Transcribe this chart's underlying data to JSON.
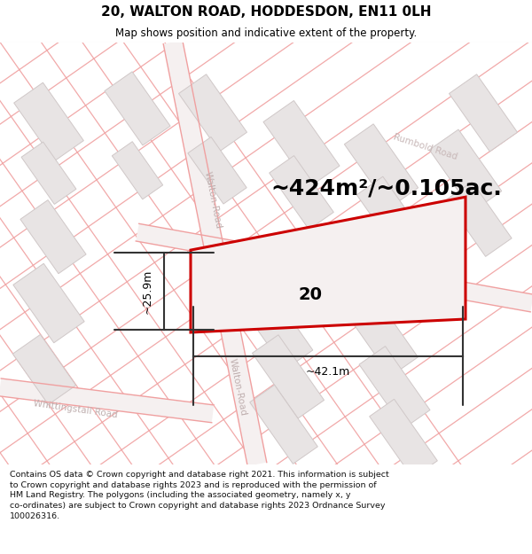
{
  "title": "20, WALTON ROAD, HODDESDON, EN11 0LH",
  "subtitle": "Map shows position and indicative extent of the property.",
  "area_text": "~424m²/~0.105ac.",
  "property_number": "20",
  "dim_width": "~42.1m",
  "dim_height": "~25.9m",
  "footer_text": "Contains OS data © Crown copyright and database right 2021. This information is subject\nto Crown copyright and database rights 2023 and is reproduced with the permission of\nHM Land Registry. The polygons (including the associated geometry, namely x, y\nco-ordinates) are subject to Crown copyright and database rights 2023 Ordnance Survey\n100026316.",
  "bg_color": "#ffffff",
  "map_bg": "#ffffff",
  "building_face": "#e8e4e4",
  "building_edge": "#d0c8c8",
  "road_line": "#f0a0a0",
  "road_label_color": "#c0b0b0",
  "property_fill": "#f5f0f0",
  "property_border": "#cc0000",
  "dim_color": "#333333",
  "title_color": "#000000",
  "footer_color": "#111111",
  "separator_color": "#dddddd",
  "title_fontsize": 11,
  "subtitle_fontsize": 8.5,
  "area_fontsize": 18,
  "footer_fontsize": 6.8,
  "road_lw": 0.9,
  "building_lw": 0.7,
  "dim_lw": 1.5,
  "prop_lw": 2.2
}
